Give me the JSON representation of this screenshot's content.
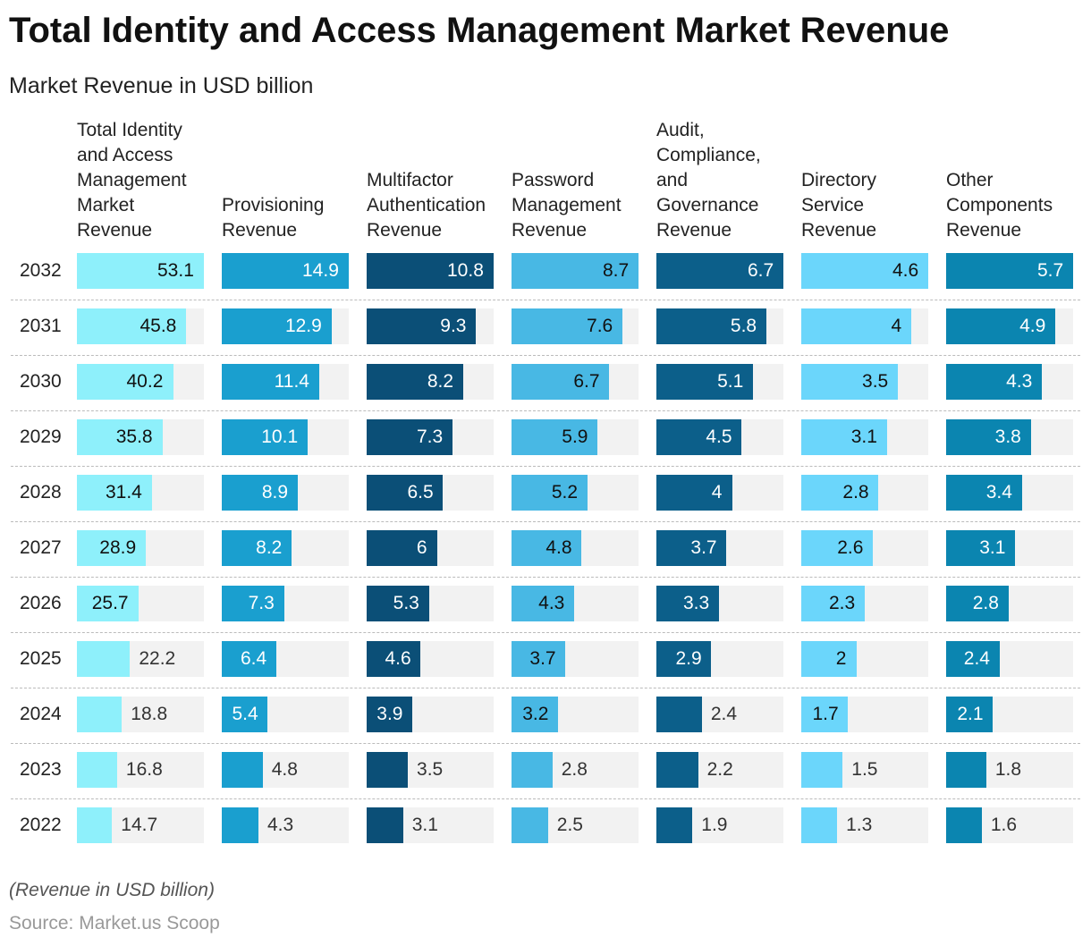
{
  "chart_data": {
    "type": "bar",
    "title": "Total Identity and Access Management Market Revenue",
    "subtitle": "Market Revenue in USD billion",
    "note": "(Revenue in USD billion)",
    "source": "Source: Market.us Scoop",
    "categories": [
      "2032",
      "2031",
      "2030",
      "2029",
      "2028",
      "2027",
      "2026",
      "2025",
      "2024",
      "2023",
      "2022"
    ],
    "series": [
      {
        "name": "Total Identity and Access Management Market Revenue",
        "color": "#8ef0fb",
        "values": [
          53.1,
          45.8,
          40.2,
          35.8,
          31.4,
          28.9,
          25.7,
          22.2,
          18.8,
          16.8,
          14.7
        ]
      },
      {
        "name": "Provisioning Revenue",
        "color": "#1a9fcf",
        "values": [
          14.9,
          12.9,
          11.4,
          10.1,
          8.9,
          8.2,
          7.3,
          6.4,
          5.4,
          4.8,
          4.3
        ]
      },
      {
        "name": "Multifactor Authentication Revenue",
        "color": "#0b4f77",
        "values": [
          10.8,
          9.3,
          8.2,
          7.3,
          6.5,
          6,
          5.3,
          4.6,
          3.9,
          3.5,
          3.1
        ]
      },
      {
        "name": "Password Management Revenue",
        "color": "#48b8e4",
        "values": [
          8.7,
          7.6,
          6.7,
          5.9,
          5.2,
          4.8,
          4.3,
          3.7,
          3.2,
          2.8,
          2.5
        ]
      },
      {
        "name": "Audit, Compliance, and Governance Revenue",
        "color": "#0c5f8a",
        "values": [
          6.7,
          5.8,
          5.1,
          4.5,
          4,
          3.7,
          3.3,
          2.9,
          2.4,
          2.2,
          1.9
        ]
      },
      {
        "name": "Directory Service Revenue",
        "color": "#6bd6fb",
        "values": [
          4.6,
          4,
          3.5,
          3.1,
          2.8,
          2.6,
          2.3,
          2,
          1.7,
          1.5,
          1.3
        ]
      },
      {
        "name": "Other Components Revenue",
        "color": "#0b85b0",
        "values": [
          5.7,
          4.9,
          4.3,
          3.8,
          3.4,
          3.1,
          2.8,
          2.4,
          2.1,
          1.8,
          1.6
        ]
      }
    ]
  }
}
